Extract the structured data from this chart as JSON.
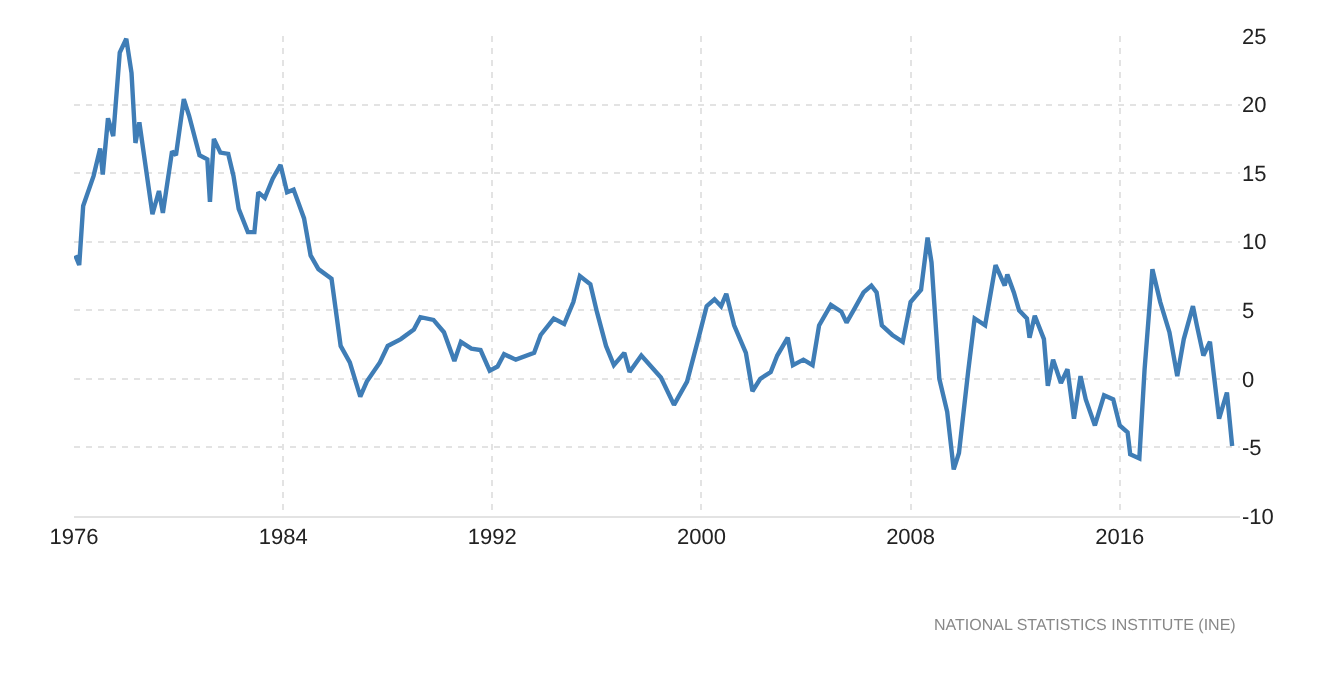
{
  "chart_data": {
    "type": "line",
    "x": [
      1976.05,
      1976.2,
      1976.35,
      1976.75,
      1977.0,
      1977.1,
      1977.3,
      1977.5,
      1977.75,
      1978.0,
      1978.2,
      1978.35,
      1978.5,
      1979.0,
      1979.25,
      1979.4,
      1979.75,
      1979.9,
      1980.2,
      1980.4,
      1980.8,
      1981.1,
      1981.2,
      1981.35,
      1981.6,
      1981.9,
      1982.1,
      1982.3,
      1982.65,
      1982.9,
      1983.05,
      1983.3,
      1983.6,
      1983.9,
      1984.15,
      1984.4,
      1984.8,
      1985.05,
      1985.35,
      1985.85,
      1986.2,
      1986.55,
      1986.95,
      1987.2,
      1987.7,
      1988.0,
      1988.5,
      1989.0,
      1989.25,
      1989.75,
      1990.15,
      1990.55,
      1990.8,
      1991.2,
      1991.55,
      1991.9,
      1992.2,
      1992.45,
      1992.9,
      1993.6,
      1993.85,
      1994.35,
      1994.75,
      1995.1,
      1995.35,
      1995.75,
      1996.0,
      1996.35,
      1996.65,
      1997.05,
      1997.25,
      1997.7,
      1998.45,
      1998.95,
      1999.45,
      1999.85,
      2000.2,
      2000.5,
      2000.75,
      2000.95,
      2001.25,
      2001.7,
      2001.95,
      2002.25,
      2002.65,
      2002.9,
      2003.3,
      2003.5,
      2003.9,
      2004.25,
      2004.5,
      2004.95,
      2005.35,
      2005.55,
      2005.85,
      2006.2,
      2006.5,
      2006.7,
      2006.9,
      2007.3,
      2007.7,
      2008.0,
      2008.4,
      2008.65,
      2008.8,
      2009.1,
      2009.4,
      2009.65,
      2009.85,
      2010.2,
      2010.45,
      2010.85,
      2011.25,
      2011.6,
      2011.7,
      2011.95,
      2012.15,
      2012.45,
      2012.55,
      2012.75,
      2013.1,
      2013.25,
      2013.45,
      2013.75,
      2014.0,
      2014.25,
      2014.5,
      2014.7,
      2015.05,
      2015.4,
      2015.75,
      2016.0,
      2016.3,
      2016.4,
      2016.75,
      2016.95,
      2017.25,
      2017.55,
      2017.9,
      2018.2,
      2018.45,
      2018.8,
      2018.95,
      2019.2,
      2019.45,
      2019.65,
      2019.8,
      2020.1,
      2020.3
    ],
    "series": [
      {
        "color": "#3f7db6",
        "values": [
          9.0,
          8.3,
          12.6,
          14.8,
          16.8,
          14.9,
          19.0,
          17.7,
          23.8,
          24.8,
          22.3,
          17.2,
          18.7,
          12.0,
          13.7,
          12.1,
          16.6,
          16.3,
          20.4,
          19.2,
          16.3,
          16.0,
          12.9,
          17.5,
          16.5,
          16.4,
          14.8,
          12.4,
          10.7,
          10.7,
          13.6,
          13.2,
          14.6,
          15.6,
          13.6,
          13.8,
          11.7,
          9.0,
          8.0,
          7.3,
          2.4,
          1.2,
          -1.3,
          -0.2,
          1.2,
          2.4,
          2.9,
          3.6,
          4.5,
          4.3,
          3.4,
          1.3,
          2.7,
          2.2,
          2.1,
          0.6,
          0.9,
          1.8,
          1.4,
          1.9,
          3.2,
          4.4,
          4.0,
          5.6,
          7.5,
          6.9,
          4.9,
          2.4,
          1.0,
          1.9,
          0.5,
          1.7,
          0.1,
          -1.9,
          -0.2,
          2.7,
          5.3,
          5.8,
          5.3,
          6.2,
          3.9,
          1.9,
          -0.9,
          0.0,
          0.5,
          1.7,
          3.0,
          1.0,
          1.4,
          1.0,
          3.9,
          5.4,
          4.9,
          4.1,
          5.1,
          6.3,
          6.8,
          6.3,
          3.9,
          3.2,
          2.7,
          5.6,
          6.5,
          10.3,
          8.5,
          0.0,
          -2.4,
          -6.6,
          -5.4,
          0.5,
          4.4,
          3.9,
          8.3,
          6.8,
          7.6,
          6.3,
          5.0,
          4.4,
          3.0,
          4.6,
          2.9,
          -0.5,
          1.4,
          -0.3,
          0.7,
          -2.9,
          0.2,
          -1.5,
          -3.4,
          -1.2,
          -1.5,
          -3.4,
          -3.9,
          -5.5,
          -5.8,
          0.7,
          8.0,
          5.6,
          3.4,
          0.2,
          2.9,
          5.3,
          3.9,
          1.7,
          2.7,
          -0.5,
          -2.9,
          -1.0,
          -4.9
        ]
      }
    ],
    "xlim": [
      1976,
      2020.6
    ],
    "xticks": [
      1976,
      1984,
      1992,
      2000,
      2008,
      2016
    ],
    "ylim": [
      -10,
      25
    ],
    "yticks": [
      -10,
      -5,
      0,
      5,
      10,
      15,
      20,
      25
    ],
    "grid": true,
    "marker": "none",
    "line_style": "solid",
    "annotations": [
      "NATIONAL STATISTICS INSTITUTE (INE)"
    ]
  }
}
